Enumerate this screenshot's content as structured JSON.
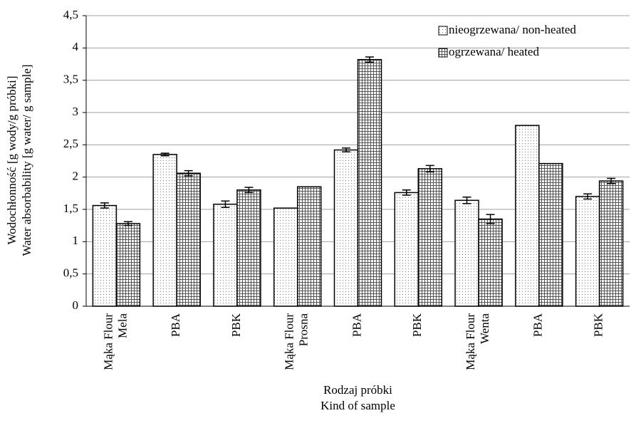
{
  "chart_data": {
    "type": "bar",
    "categories": [
      [
        "Mąka Flour",
        "Mela"
      ],
      [
        "PBA"
      ],
      [
        "PBK"
      ],
      [
        "Mąka Flour",
        "Prosna"
      ],
      [
        "PBA"
      ],
      [
        "PBK"
      ],
      [
        "Mąka Flour",
        "Wenta"
      ],
      [
        "PBA"
      ],
      [
        "PBK"
      ]
    ],
    "series": [
      {
        "name": "nieogrzewana/ non-heated",
        "color": "#000000",
        "pattern": "dots",
        "values": [
          1.56,
          2.35,
          1.58,
          1.52,
          2.42,
          1.76,
          1.64,
          2.8,
          1.7
        ],
        "errors": [
          0.04,
          0.02,
          0.05,
          null,
          0.03,
          0.04,
          0.05,
          null,
          0.04
        ]
      },
      {
        "name": "ogrzewana/ heated",
        "color": "#000000",
        "pattern": "grid",
        "values": [
          1.28,
          2.06,
          1.8,
          1.85,
          3.82,
          2.13,
          1.35,
          2.21,
          1.94
        ],
        "errors": [
          0.03,
          0.04,
          0.04,
          null,
          0.04,
          0.05,
          0.07,
          null,
          0.04
        ]
      }
    ],
    "ylabel": [
      "Wodochłonność [g wody/g próbki]",
      "Water absorbability [g water/ g sample]"
    ],
    "xlabel": [
      "Rodzaj próbki",
      "Kind of sample"
    ],
    "ylim": [
      0,
      4.5
    ],
    "yticks": [
      0,
      {
        "value": 0.5,
        "label": "0,5"
      },
      1,
      {
        "value": 1.5,
        "label": "1,5"
      },
      2,
      {
        "value": 2.5,
        "label": "2,5"
      },
      3,
      {
        "value": 3.5,
        "label": "3,5"
      },
      4,
      {
        "value": 4.5,
        "label": "4,5"
      }
    ],
    "grid": true,
    "legend": "top-right"
  }
}
